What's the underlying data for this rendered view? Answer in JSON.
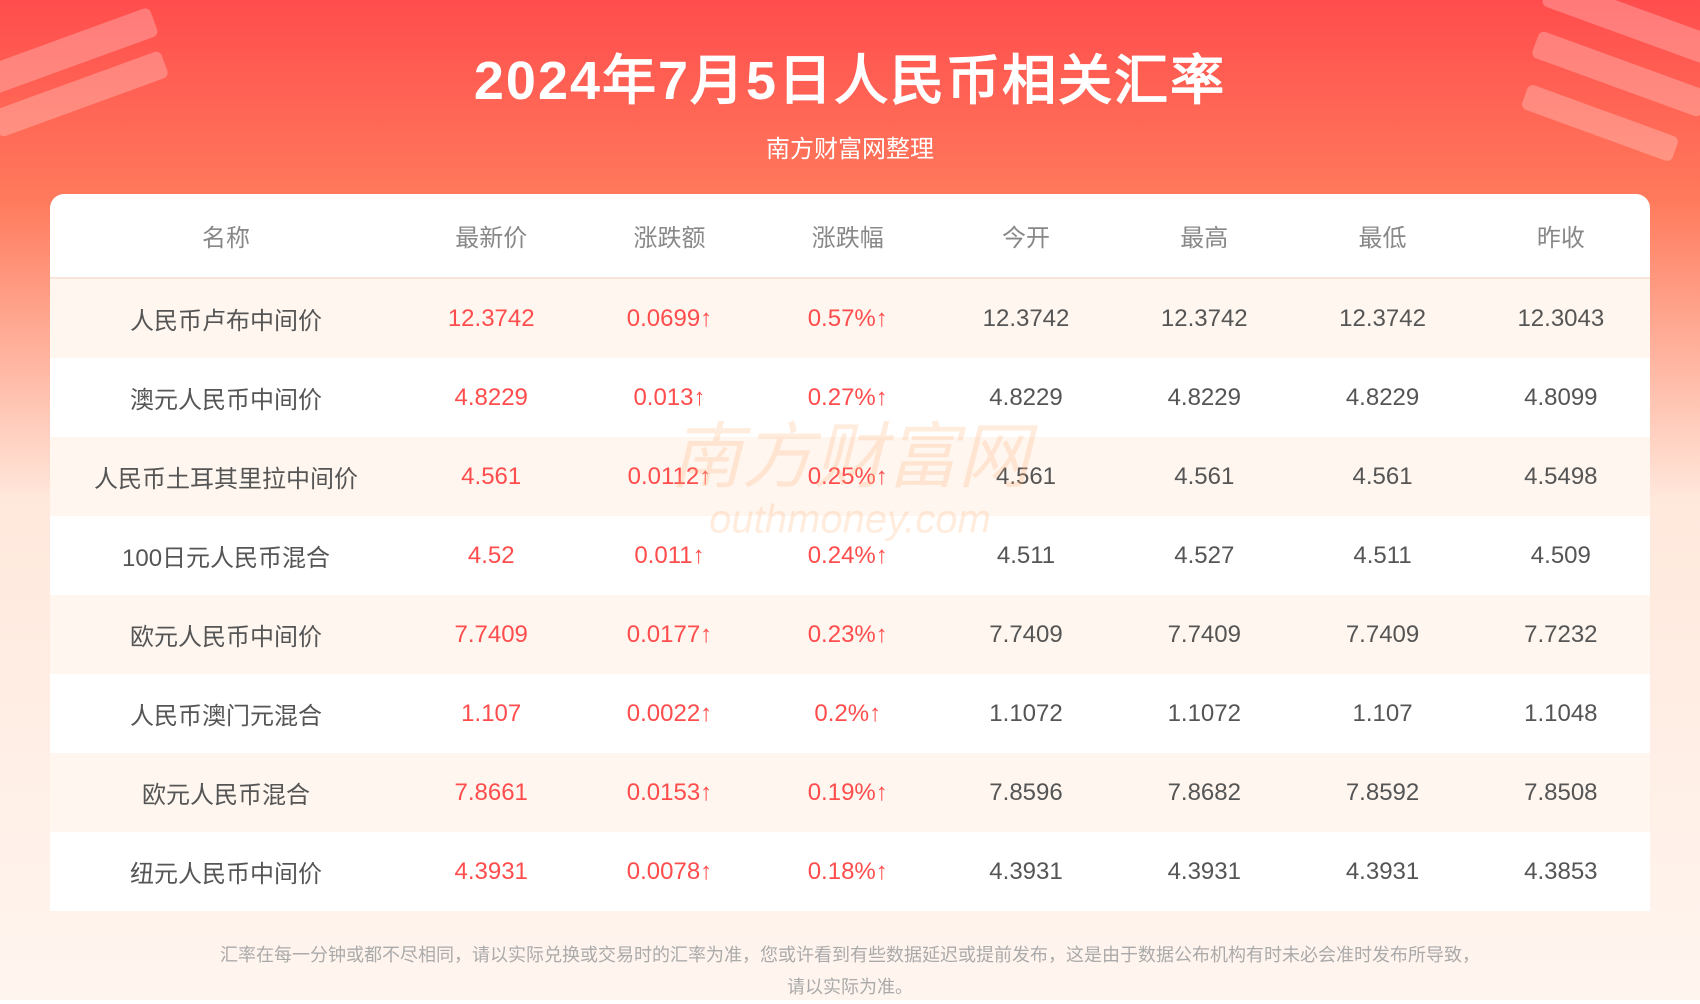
{
  "header": {
    "title": "2024年7月5日人民币相关汇率",
    "subtitle": "南方财富网整理"
  },
  "watermark": {
    "line1": "南方财富网",
    "line2": "outhmoney.com"
  },
  "table": {
    "columns": [
      "名称",
      "最新价",
      "涨跌额",
      "涨跌幅",
      "今开",
      "最高",
      "最低",
      "昨收"
    ],
    "rows": [
      {
        "name": "人民币卢布中间价",
        "latest": "12.3742",
        "change": "0.0699↑",
        "pct": "0.57%↑",
        "open": "12.3742",
        "high": "12.3742",
        "low": "12.3742",
        "prev": "12.3043",
        "dir": "up"
      },
      {
        "name": "澳元人民币中间价",
        "latest": "4.8229",
        "change": "0.013↑",
        "pct": "0.27%↑",
        "open": "4.8229",
        "high": "4.8229",
        "low": "4.8229",
        "prev": "4.8099",
        "dir": "up"
      },
      {
        "name": "人民币土耳其里拉中间价",
        "latest": "4.561",
        "change": "0.0112↑",
        "pct": "0.25%↑",
        "open": "4.561",
        "high": "4.561",
        "low": "4.561",
        "prev": "4.5498",
        "dir": "up"
      },
      {
        "name": "100日元人民币混合",
        "latest": "4.52",
        "change": "0.011↑",
        "pct": "0.24%↑",
        "open": "4.511",
        "high": "4.527",
        "low": "4.511",
        "prev": "4.509",
        "dir": "up"
      },
      {
        "name": "欧元人民币中间价",
        "latest": "7.7409",
        "change": "0.0177↑",
        "pct": "0.23%↑",
        "open": "7.7409",
        "high": "7.7409",
        "low": "7.7409",
        "prev": "7.7232",
        "dir": "up"
      },
      {
        "name": "人民币澳门元混合",
        "latest": "1.107",
        "change": "0.0022↑",
        "pct": "0.2%↑",
        "open": "1.1072",
        "high": "1.1072",
        "low": "1.107",
        "prev": "1.1048",
        "dir": "up"
      },
      {
        "name": "欧元人民币混合",
        "latest": "7.8661",
        "change": "0.0153↑",
        "pct": "0.19%↑",
        "open": "7.8596",
        "high": "7.8682",
        "low": "7.8592",
        "prev": "7.8508",
        "dir": "up"
      },
      {
        "name": "纽元人民币中间价",
        "latest": "4.3931",
        "change": "0.0078↑",
        "pct": "0.18%↑",
        "open": "4.3931",
        "high": "4.3931",
        "low": "4.3931",
        "prev": "4.3853",
        "dir": "up"
      }
    ]
  },
  "footer": {
    "line1": "汇率在每一分钟或都不尽相同，请以实际兑换或交易时的汇率为准，您或许看到有些数据延迟或提前发布，这是由于数据公布机构有时未必会准时发布所导致，",
    "line2": "请以实际为准。"
  },
  "style": {
    "title_color": "#ffffff",
    "title_fontsize": 54,
    "subtitle_fontsize": 24,
    "header_text_color": "#888888",
    "body_text_color": "#555555",
    "up_color": "#ff4d4d",
    "row_odd_bg": "#fff6ef",
    "row_even_bg": "#ffffff",
    "header_bg": "#ffffff",
    "footer_color": "#aaaaaa",
    "cell_fontsize": 24,
    "gradient_top": "#ff4d4d",
    "gradient_mid": "#ff7a5c",
    "gradient_bottom": "#fff5ef",
    "border_radius": 14
  }
}
